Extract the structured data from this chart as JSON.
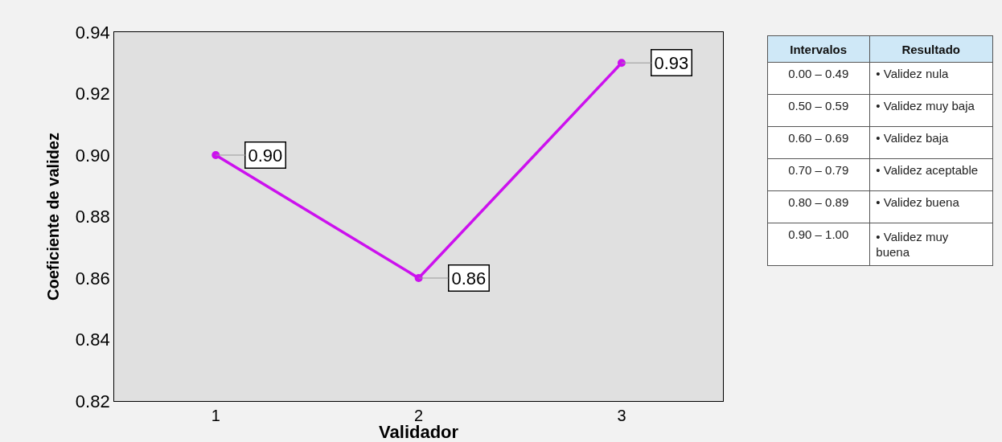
{
  "chart_data": [
    {
      "type": "line",
      "xlabel": "Validador",
      "ylabel": "Coeficiente de validez",
      "categories": [
        "1",
        "2",
        "3"
      ],
      "series": [
        {
          "color": "#cc11ee",
          "values": [
            0.9,
            0.86,
            0.93
          ],
          "value_labels": [
            "0.90",
            "0.86",
            "0.93"
          ]
        }
      ],
      "ylim": [
        0.82,
        0.94
      ],
      "yticks": [
        0.82,
        0.84,
        0.86,
        0.88,
        {
          "value": 0.9,
          "label": "0.90"
        },
        0.92,
        0.94
      ],
      "grid": false,
      "marker": "circle",
      "line_style": "solid"
    },
    {
      "type": "other",
      "annotations": [
        "Intervalos",
        "Resultado",
        "0.00 – 0.49",
        "• Validez nula",
        "0.50 – 0.59",
        "• Validez muy baja",
        "0.60 – 0.69",
        "• Validez baja",
        "0.70 – 0.79",
        "• Validez aceptable",
        "0.80 – 0.89",
        "• Validez buena",
        "0.90 – 1.00",
        "• Validez muy buena"
      ]
    }
  ]
}
